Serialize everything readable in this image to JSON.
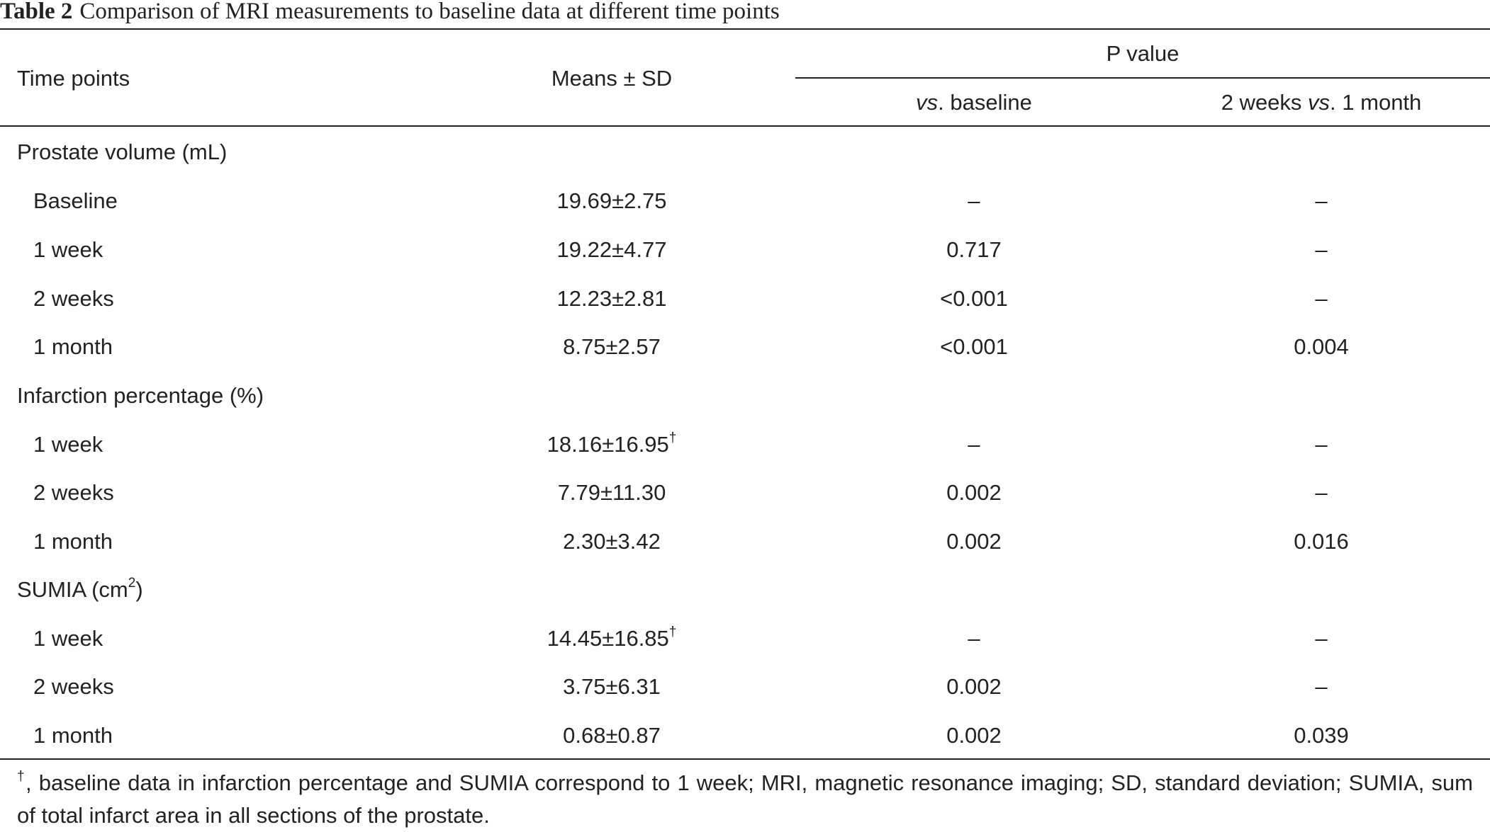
{
  "caption": {
    "label": "Table 2",
    "text": "Comparison of MRI measurements to baseline data at different time points"
  },
  "header": {
    "time_points": "Time points",
    "means_sd": "Means ± SD",
    "p_value": "P value",
    "vs_italic": "vs",
    "vs_rest": ". baseline",
    "two_weeks_pre": "2 weeks ",
    "two_weeks_vs": "vs",
    "two_weeks_post": ". 1 month"
  },
  "dagger": "†",
  "groups": [
    {
      "label": "Prostate volume (mL)",
      "rows": [
        {
          "time": "Baseline",
          "mean": "19.69±2.75",
          "vs_baseline": "–",
          "two_weeks_vs_1_month": "–"
        },
        {
          "time": "1 week",
          "mean": "19.22±4.77",
          "vs_baseline": "0.717",
          "two_weeks_vs_1_month": "–"
        },
        {
          "time": "2 weeks",
          "mean": "12.23±2.81",
          "vs_baseline": "<0.001",
          "two_weeks_vs_1_month": "–"
        },
        {
          "time": "1 month",
          "mean": "8.75±2.57",
          "vs_baseline": "<0.001",
          "two_weeks_vs_1_month": "0.004"
        }
      ]
    },
    {
      "label": "Infarction percentage (%)",
      "rows": [
        {
          "time": "1 week",
          "mean": "18.16±16.95",
          "vs_baseline": "–",
          "two_weeks_vs_1_month": "–"
        },
        {
          "time": "2 weeks",
          "mean": "7.79±11.30",
          "vs_baseline": "0.002",
          "two_weeks_vs_1_month": "–"
        },
        {
          "time": "1 month",
          "mean": "2.30±3.42",
          "vs_baseline": "0.002",
          "two_weeks_vs_1_month": "0.016"
        }
      ]
    },
    {
      "label_pre": "SUMIA (cm",
      "label_sup": "2",
      "label_post": ")",
      "rows": [
        {
          "time": "1 week",
          "mean": "14.45±16.85",
          "vs_baseline": "–",
          "two_weeks_vs_1_month": "–"
        },
        {
          "time": "2 weeks",
          "mean": "3.75±6.31",
          "vs_baseline": "0.002",
          "two_weeks_vs_1_month": "–"
        },
        {
          "time": "1 month",
          "mean": "0.68±0.87",
          "vs_baseline": "0.002",
          "two_weeks_vs_1_month": "0.039"
        }
      ]
    }
  ],
  "footnote": {
    "marker": "†",
    "text": ", baseline data in infarction percentage and SUMIA correspond to 1 week; MRI, magnetic resonance imaging; SD, standard deviation; SUMIA, sum of total infarct area in all sections of the prostate."
  }
}
